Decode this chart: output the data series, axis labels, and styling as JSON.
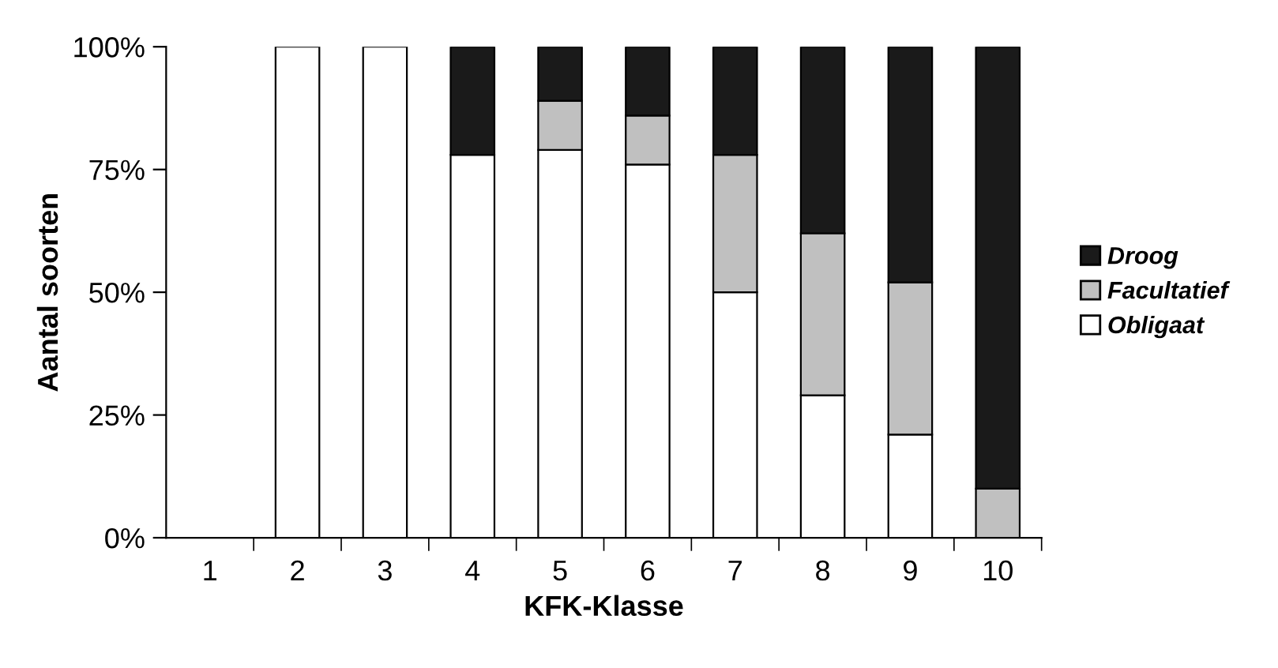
{
  "chart_data": {
    "type": "bar",
    "stacked": true,
    "xlabel": "KFK-Klasse",
    "ylabel": "Aantal soorten",
    "categories": [
      "1",
      "2",
      "3",
      "4",
      "5",
      "6",
      "7",
      "8",
      "9",
      "10"
    ],
    "series": [
      {
        "name": "Obligaat",
        "color": "#ffffff",
        "values": [
          null,
          100,
          100,
          78,
          79,
          76,
          50,
          29,
          21,
          0
        ]
      },
      {
        "name": "Facultatief",
        "color": "#c0c0c0",
        "values": [
          null,
          0,
          0,
          0,
          10,
          10,
          28,
          33,
          31,
          10
        ]
      },
      {
        "name": "Droog",
        "color": "#1a1a1a",
        "values": [
          null,
          0,
          0,
          22,
          11,
          14,
          22,
          38,
          48,
          90
        ]
      }
    ],
    "ylim": [
      0,
      100
    ],
    "yticks": [
      {
        "value": 0,
        "label": "0%"
      },
      {
        "value": 25,
        "label": "25%"
      },
      {
        "value": 50,
        "label": "50%"
      },
      {
        "value": 75,
        "label": "75%"
      },
      {
        "value": 100,
        "label": "100%"
      }
    ],
    "grid": false,
    "legend": "right"
  }
}
